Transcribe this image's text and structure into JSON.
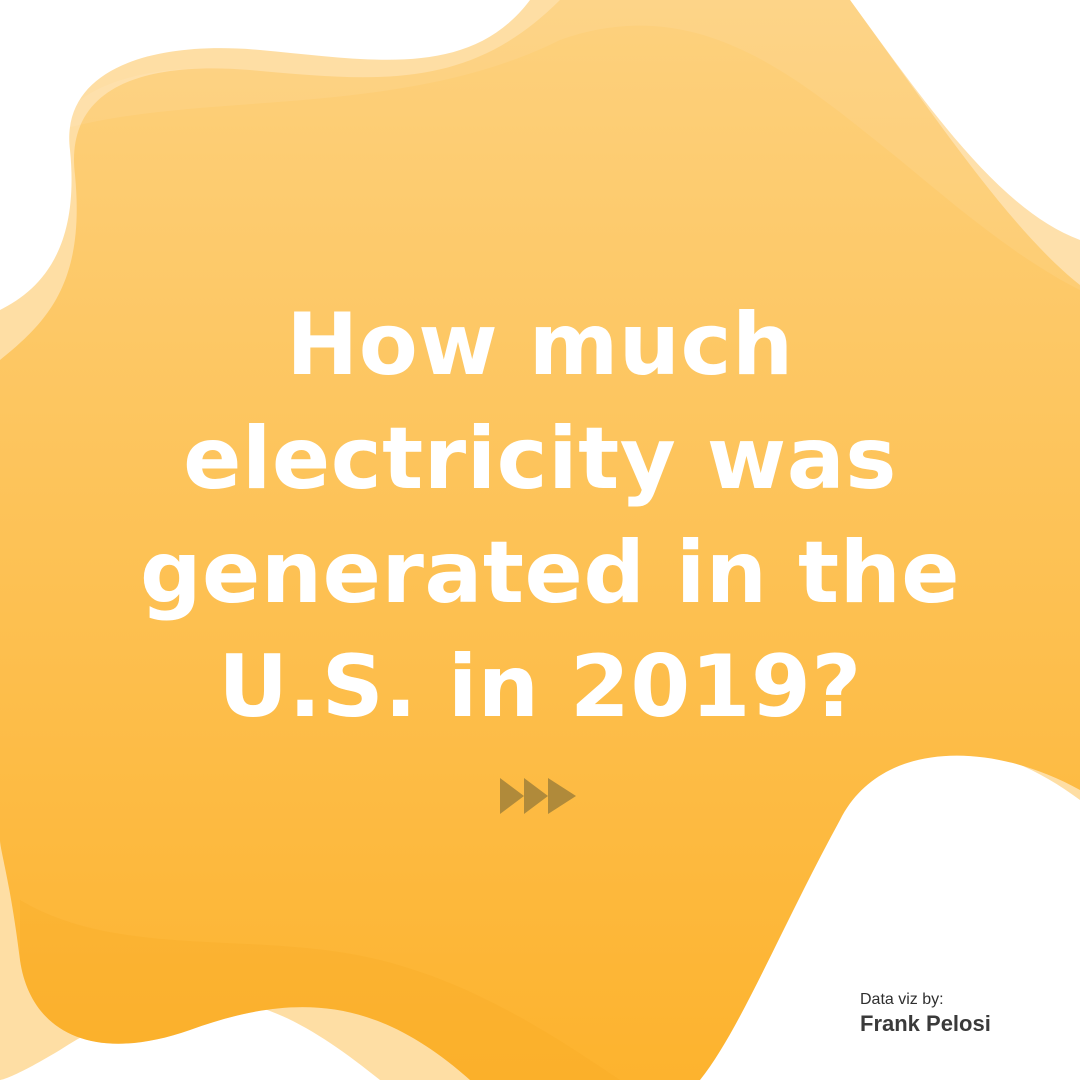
{
  "headline": {
    "lines": [
      "How much",
      "electricity was",
      "generated in the",
      "U.S. in 2019?"
    ]
  },
  "navigation": {
    "next_icon": "fast-forward-icon"
  },
  "credit": {
    "label": "Data viz by:",
    "name": "Frank Pelosi"
  },
  "colors": {
    "background": "#ffffff",
    "blob_top": "#fdd17e",
    "blob_bottom": "#fdb32e",
    "headline_text": "#ffffff",
    "arrow": "#b08a3a",
    "credit_text": "#333333"
  }
}
